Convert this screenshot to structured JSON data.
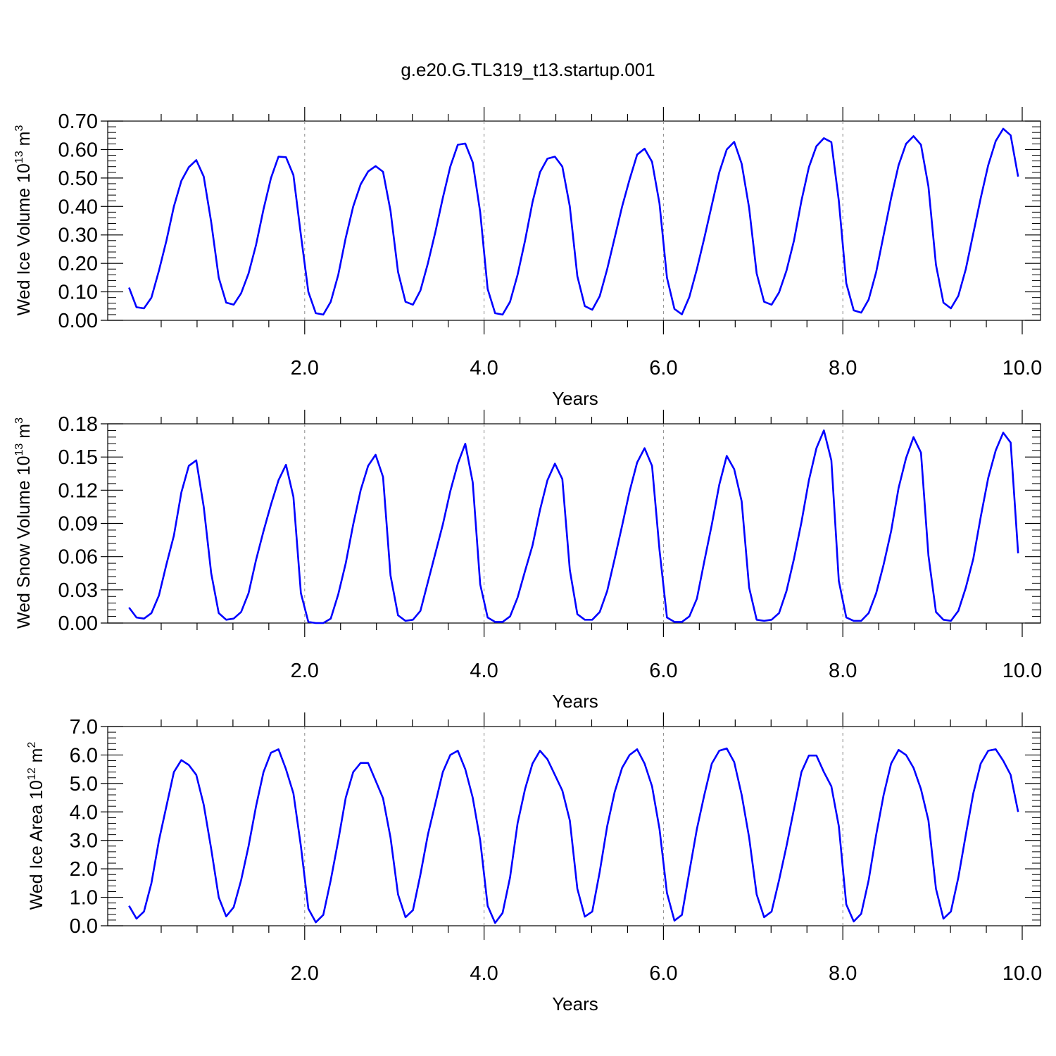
{
  "title": "g.e20.G.TL319_t13.startup.001",
  "colors": {
    "series": "#0000ff",
    "axis": "#000000",
    "gridline": "#888888"
  },
  "chart_data": [
    {
      "type": "line",
      "title": "g.e20.G.TL319_t13.startup.001",
      "xlabel": "Years",
      "ylabel": "Wed Ice Volume 10",
      "ylabel_exponent": "13",
      "ylabel_unit": " m",
      "ylabel_unit_power": "3",
      "xlim": [
        0.0,
        10.0
      ],
      "ylim": [
        0.0,
        0.7
      ],
      "xticks": [
        2.0,
        4.0,
        6.0,
        8.0,
        10.0
      ],
      "xtick_labels": [
        "2.0",
        "4.0",
        "6.0",
        "8.0",
        "10.0"
      ],
      "yticks": [
        0.0,
        0.1,
        0.2,
        0.3,
        0.4,
        0.5,
        0.6,
        0.7
      ],
      "ytick_labels": [
        "0.00",
        "0.10",
        "0.20",
        "0.30",
        "0.40",
        "0.50",
        "0.60",
        "0.70"
      ],
      "vlines": [
        2.0,
        4.0,
        6.0,
        8.0
      ],
      "x_start": 0.0417,
      "x_step": 0.0833,
      "values": [
        0.115,
        0.046,
        0.042,
        0.08,
        0.175,
        0.28,
        0.4,
        0.49,
        0.538,
        0.563,
        0.505,
        0.345,
        0.15,
        0.062,
        0.055,
        0.095,
        0.165,
        0.265,
        0.39,
        0.5,
        0.575,
        0.573,
        0.51,
        0.3,
        0.1,
        0.025,
        0.02,
        0.065,
        0.16,
        0.29,
        0.4,
        0.478,
        0.523,
        0.542,
        0.522,
        0.385,
        0.17,
        0.065,
        0.055,
        0.105,
        0.2,
        0.31,
        0.43,
        0.54,
        0.617,
        0.621,
        0.555,
        0.38,
        0.11,
        0.025,
        0.02,
        0.065,
        0.16,
        0.28,
        0.415,
        0.52,
        0.568,
        0.575,
        0.54,
        0.4,
        0.155,
        0.05,
        0.037,
        0.085,
        0.18,
        0.29,
        0.4,
        0.495,
        0.582,
        0.603,
        0.557,
        0.41,
        0.15,
        0.04,
        0.021,
        0.082,
        0.18,
        0.29,
        0.405,
        0.52,
        0.6,
        0.627,
        0.55,
        0.395,
        0.165,
        0.065,
        0.055,
        0.098,
        0.175,
        0.28,
        0.42,
        0.538,
        0.612,
        0.64,
        0.626,
        0.42,
        0.13,
        0.035,
        0.027,
        0.073,
        0.17,
        0.3,
        0.43,
        0.545,
        0.62,
        0.647,
        0.617,
        0.47,
        0.195,
        0.062,
        0.042,
        0.086,
        0.18,
        0.305,
        0.43,
        0.545,
        0.63,
        0.673,
        0.65,
        0.505
      ]
    },
    {
      "type": "line",
      "xlabel": "Years",
      "ylabel": "Wed Snow Volume 10",
      "ylabel_exponent": "13",
      "ylabel_unit": " m",
      "ylabel_unit_power": "3",
      "xlim": [
        0.0,
        10.0
      ],
      "ylim": [
        0.0,
        0.18
      ],
      "xticks": [
        2.0,
        4.0,
        6.0,
        8.0,
        10.0
      ],
      "xtick_labels": [
        "2.0",
        "4.0",
        "6.0",
        "8.0",
        "10.0"
      ],
      "yticks": [
        0.0,
        0.03,
        0.06,
        0.09,
        0.12,
        0.15,
        0.18
      ],
      "ytick_labels": [
        "0.00",
        "0.03",
        "0.06",
        "0.09",
        "0.12",
        "0.15",
        "0.18"
      ],
      "vlines": [
        2.0,
        4.0,
        6.0,
        8.0
      ],
      "x_start": 0.0417,
      "x_step": 0.0833,
      "values": [
        0.014,
        0.005,
        0.004,
        0.009,
        0.025,
        0.053,
        0.079,
        0.118,
        0.142,
        0.147,
        0.105,
        0.045,
        0.009,
        0.003,
        0.004,
        0.01,
        0.027,
        0.057,
        0.083,
        0.107,
        0.129,
        0.143,
        0.114,
        0.027,
        0.001,
        0.0,
        0.0,
        0.004,
        0.026,
        0.054,
        0.089,
        0.12,
        0.142,
        0.152,
        0.132,
        0.043,
        0.007,
        0.002,
        0.003,
        0.011,
        0.037,
        0.063,
        0.089,
        0.119,
        0.144,
        0.162,
        0.127,
        0.035,
        0.005,
        0.001,
        0.001,
        0.006,
        0.023,
        0.047,
        0.07,
        0.102,
        0.129,
        0.144,
        0.13,
        0.048,
        0.008,
        0.003,
        0.003,
        0.01,
        0.029,
        0.058,
        0.088,
        0.119,
        0.145,
        0.158,
        0.142,
        0.066,
        0.005,
        0.001,
        0.001,
        0.006,
        0.022,
        0.056,
        0.089,
        0.125,
        0.151,
        0.139,
        0.11,
        0.032,
        0.003,
        0.002,
        0.003,
        0.009,
        0.029,
        0.058,
        0.091,
        0.129,
        0.158,
        0.174,
        0.147,
        0.038,
        0.005,
        0.002,
        0.002,
        0.009,
        0.027,
        0.053,
        0.083,
        0.122,
        0.149,
        0.168,
        0.154,
        0.061,
        0.01,
        0.003,
        0.002,
        0.011,
        0.032,
        0.058,
        0.096,
        0.131,
        0.156,
        0.172,
        0.163,
        0.063
      ]
    },
    {
      "type": "line",
      "xlabel": "Years",
      "ylabel": "Wed Ice Area 10",
      "ylabel_exponent": "12",
      "ylabel_unit": " m",
      "ylabel_unit_power": "2",
      "xlim": [
        0.0,
        10.0
      ],
      "ylim": [
        0.0,
        7.0
      ],
      "xticks": [
        2.0,
        4.0,
        6.0,
        8.0,
        10.0
      ],
      "xtick_labels": [
        "2.0",
        "4.0",
        "6.0",
        "8.0",
        "10.0"
      ],
      "yticks": [
        0.0,
        1.0,
        2.0,
        3.0,
        4.0,
        5.0,
        6.0,
        7.0
      ],
      "ytick_labels": [
        "0.0",
        "1.0",
        "2.0",
        "3.0",
        "4.0",
        "5.0",
        "6.0",
        "7.0"
      ],
      "vlines": [
        2.0,
        4.0,
        6.0,
        8.0
      ],
      "x_start": 0.0417,
      "x_step": 0.0833,
      "values": [
        0.7,
        0.25,
        0.5,
        1.5,
        3.0,
        4.2,
        5.4,
        5.82,
        5.65,
        5.3,
        4.25,
        2.7,
        1.0,
        0.33,
        0.65,
        1.6,
        2.8,
        4.2,
        5.4,
        6.08,
        6.2,
        5.5,
        4.65,
        2.8,
        0.6,
        0.12,
        0.38,
        1.6,
        3.0,
        4.5,
        5.4,
        5.72,
        5.72,
        5.1,
        4.48,
        3.1,
        1.1,
        0.3,
        0.55,
        1.8,
        3.2,
        4.3,
        5.4,
        6.0,
        6.15,
        5.5,
        4.5,
        3.0,
        0.7,
        0.1,
        0.45,
        1.7,
        3.6,
        4.8,
        5.7,
        6.15,
        5.85,
        5.3,
        4.75,
        3.7,
        1.3,
        0.32,
        0.5,
        1.9,
        3.5,
        4.7,
        5.55,
        6.0,
        6.2,
        5.7,
        4.9,
        3.4,
        1.15,
        0.18,
        0.38,
        1.9,
        3.4,
        4.6,
        5.7,
        6.15,
        6.23,
        5.75,
        4.6,
        3.1,
        1.1,
        0.3,
        0.5,
        1.6,
        2.8,
        4.1,
        5.4,
        5.98,
        5.98,
        5.4,
        4.9,
        3.5,
        0.75,
        0.15,
        0.42,
        1.6,
        3.2,
        4.6,
        5.7,
        6.18,
        6.0,
        5.55,
        4.8,
        3.7,
        1.3,
        0.25,
        0.5,
        1.7,
        3.2,
        4.65,
        5.7,
        6.15,
        6.2,
        5.8,
        5.3,
        4.0
      ]
    }
  ]
}
